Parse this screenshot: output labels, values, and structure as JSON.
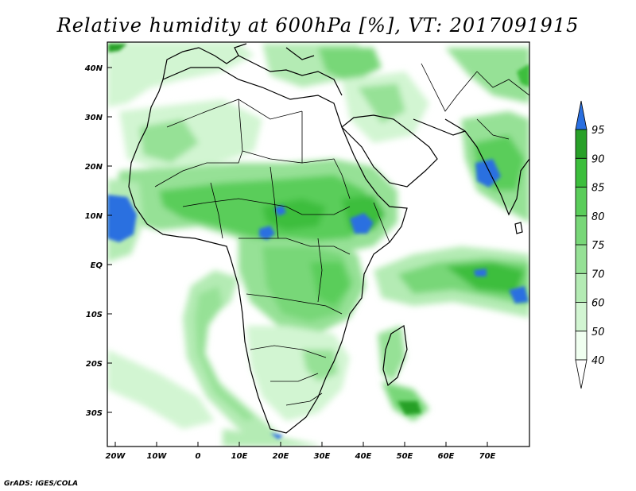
{
  "title": "Relative humidity at 600hPa [%], VT: 2017091915",
  "credit": "GrADS: IGES/COLA",
  "map": {
    "variable": "Relative humidity",
    "level": "600hPa",
    "units": "%",
    "valid_time": "2017091915",
    "lon_ticks": [
      "20W",
      "10W",
      "0",
      "10E",
      "20E",
      "30E",
      "40E",
      "50E",
      "60E",
      "70E"
    ],
    "lat_ticks": [
      "40N",
      "30N",
      "20N",
      "10N",
      "EQ",
      "10S",
      "20S",
      "30S"
    ]
  },
  "colorbar": {
    "levels": [
      "40",
      "50",
      "60",
      "70",
      "75",
      "80",
      "85",
      "90",
      "95"
    ],
    "colors": [
      "#f0fff0",
      "#d2f5d2",
      "#b4ebb4",
      "#96e196",
      "#78d778",
      "#5acd5a",
      "#3cbe3c",
      "#28a028",
      "#2a6fe0"
    ],
    "below_color": "#ffffff",
    "above_color": "#2a6fe0"
  },
  "colors": {
    "coast": "#000000",
    "land_bg": "#ffffff"
  }
}
